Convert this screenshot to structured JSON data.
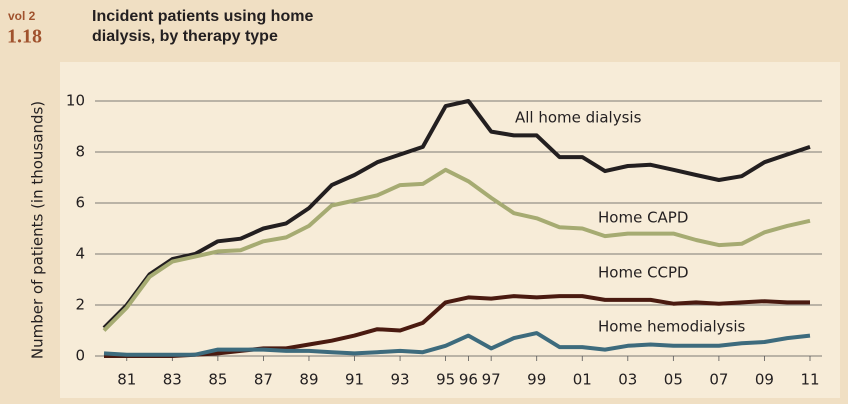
{
  "chart_data": {
    "type": "line",
    "volume": "vol 2",
    "figure_number": "1.18",
    "title": [
      "Incident patients using home",
      "dialysis, by therapy type"
    ],
    "y_label": "Number of patients (in thousands)",
    "categories": [
      null,
      "81",
      null,
      "83",
      null,
      "85",
      null,
      "87",
      null,
      "89",
      null,
      "91",
      null,
      "93",
      null,
      "95",
      "96",
      "97",
      null,
      "99",
      null,
      "01",
      null,
      "03",
      null,
      "05",
      null,
      "07",
      null,
      "09",
      null,
      "11"
    ],
    "ylim": [
      0,
      10
    ],
    "yticks": [
      0,
      2,
      4,
      6,
      8,
      10
    ],
    "grid": true,
    "series": [
      {
        "name": "All home dialysis",
        "color": "#231f20",
        "values": [
          1.1,
          2.0,
          3.2,
          3.8,
          4.0,
          4.5,
          4.6,
          5.0,
          5.2,
          5.8,
          6.7,
          7.1,
          7.6,
          7.9,
          8.2,
          9.8,
          10.0,
          8.8,
          8.65,
          8.65,
          7.8,
          7.8,
          7.25,
          7.45,
          7.5,
          7.3,
          7.1,
          6.9,
          7.05,
          7.6,
          7.9,
          8.2
        ]
      },
      {
        "name": "Home CAPD",
        "color": "#a6ab72",
        "values": [
          1.0,
          1.9,
          3.1,
          3.7,
          3.9,
          4.1,
          4.15,
          4.5,
          4.65,
          5.1,
          5.9,
          6.1,
          6.3,
          6.7,
          6.75,
          7.3,
          6.85,
          6.2,
          5.6,
          5.4,
          5.05,
          5.0,
          4.7,
          4.8,
          4.8,
          4.8,
          4.55,
          4.35,
          4.4,
          4.85,
          5.1,
          5.3
        ]
      },
      {
        "name": "Home CCPD",
        "color": "#4a1a10",
        "values": [
          0,
          0,
          0,
          0,
          0.05,
          0.1,
          0.2,
          0.3,
          0.3,
          0.45,
          0.6,
          0.8,
          1.05,
          1.0,
          1.3,
          2.1,
          2.3,
          2.25,
          2.35,
          2.3,
          2.35,
          2.35,
          2.2,
          2.2,
          2.2,
          2.05,
          2.1,
          2.05,
          2.1,
          2.15,
          2.1,
          2.1
        ]
      },
      {
        "name": "Home hemodialysis",
        "color": "#3d6b7d",
        "values": [
          0.1,
          0.05,
          0.05,
          0.05,
          0.05,
          0.25,
          0.25,
          0.25,
          0.2,
          0.2,
          0.15,
          0.1,
          0.15,
          0.2,
          0.15,
          0.4,
          0.8,
          0.3,
          0.7,
          0.9,
          0.35,
          0.35,
          0.25,
          0.4,
          0.45,
          0.4,
          0.4,
          0.4,
          0.5,
          0.55,
          0.7,
          0.8
        ]
      }
    ]
  }
}
